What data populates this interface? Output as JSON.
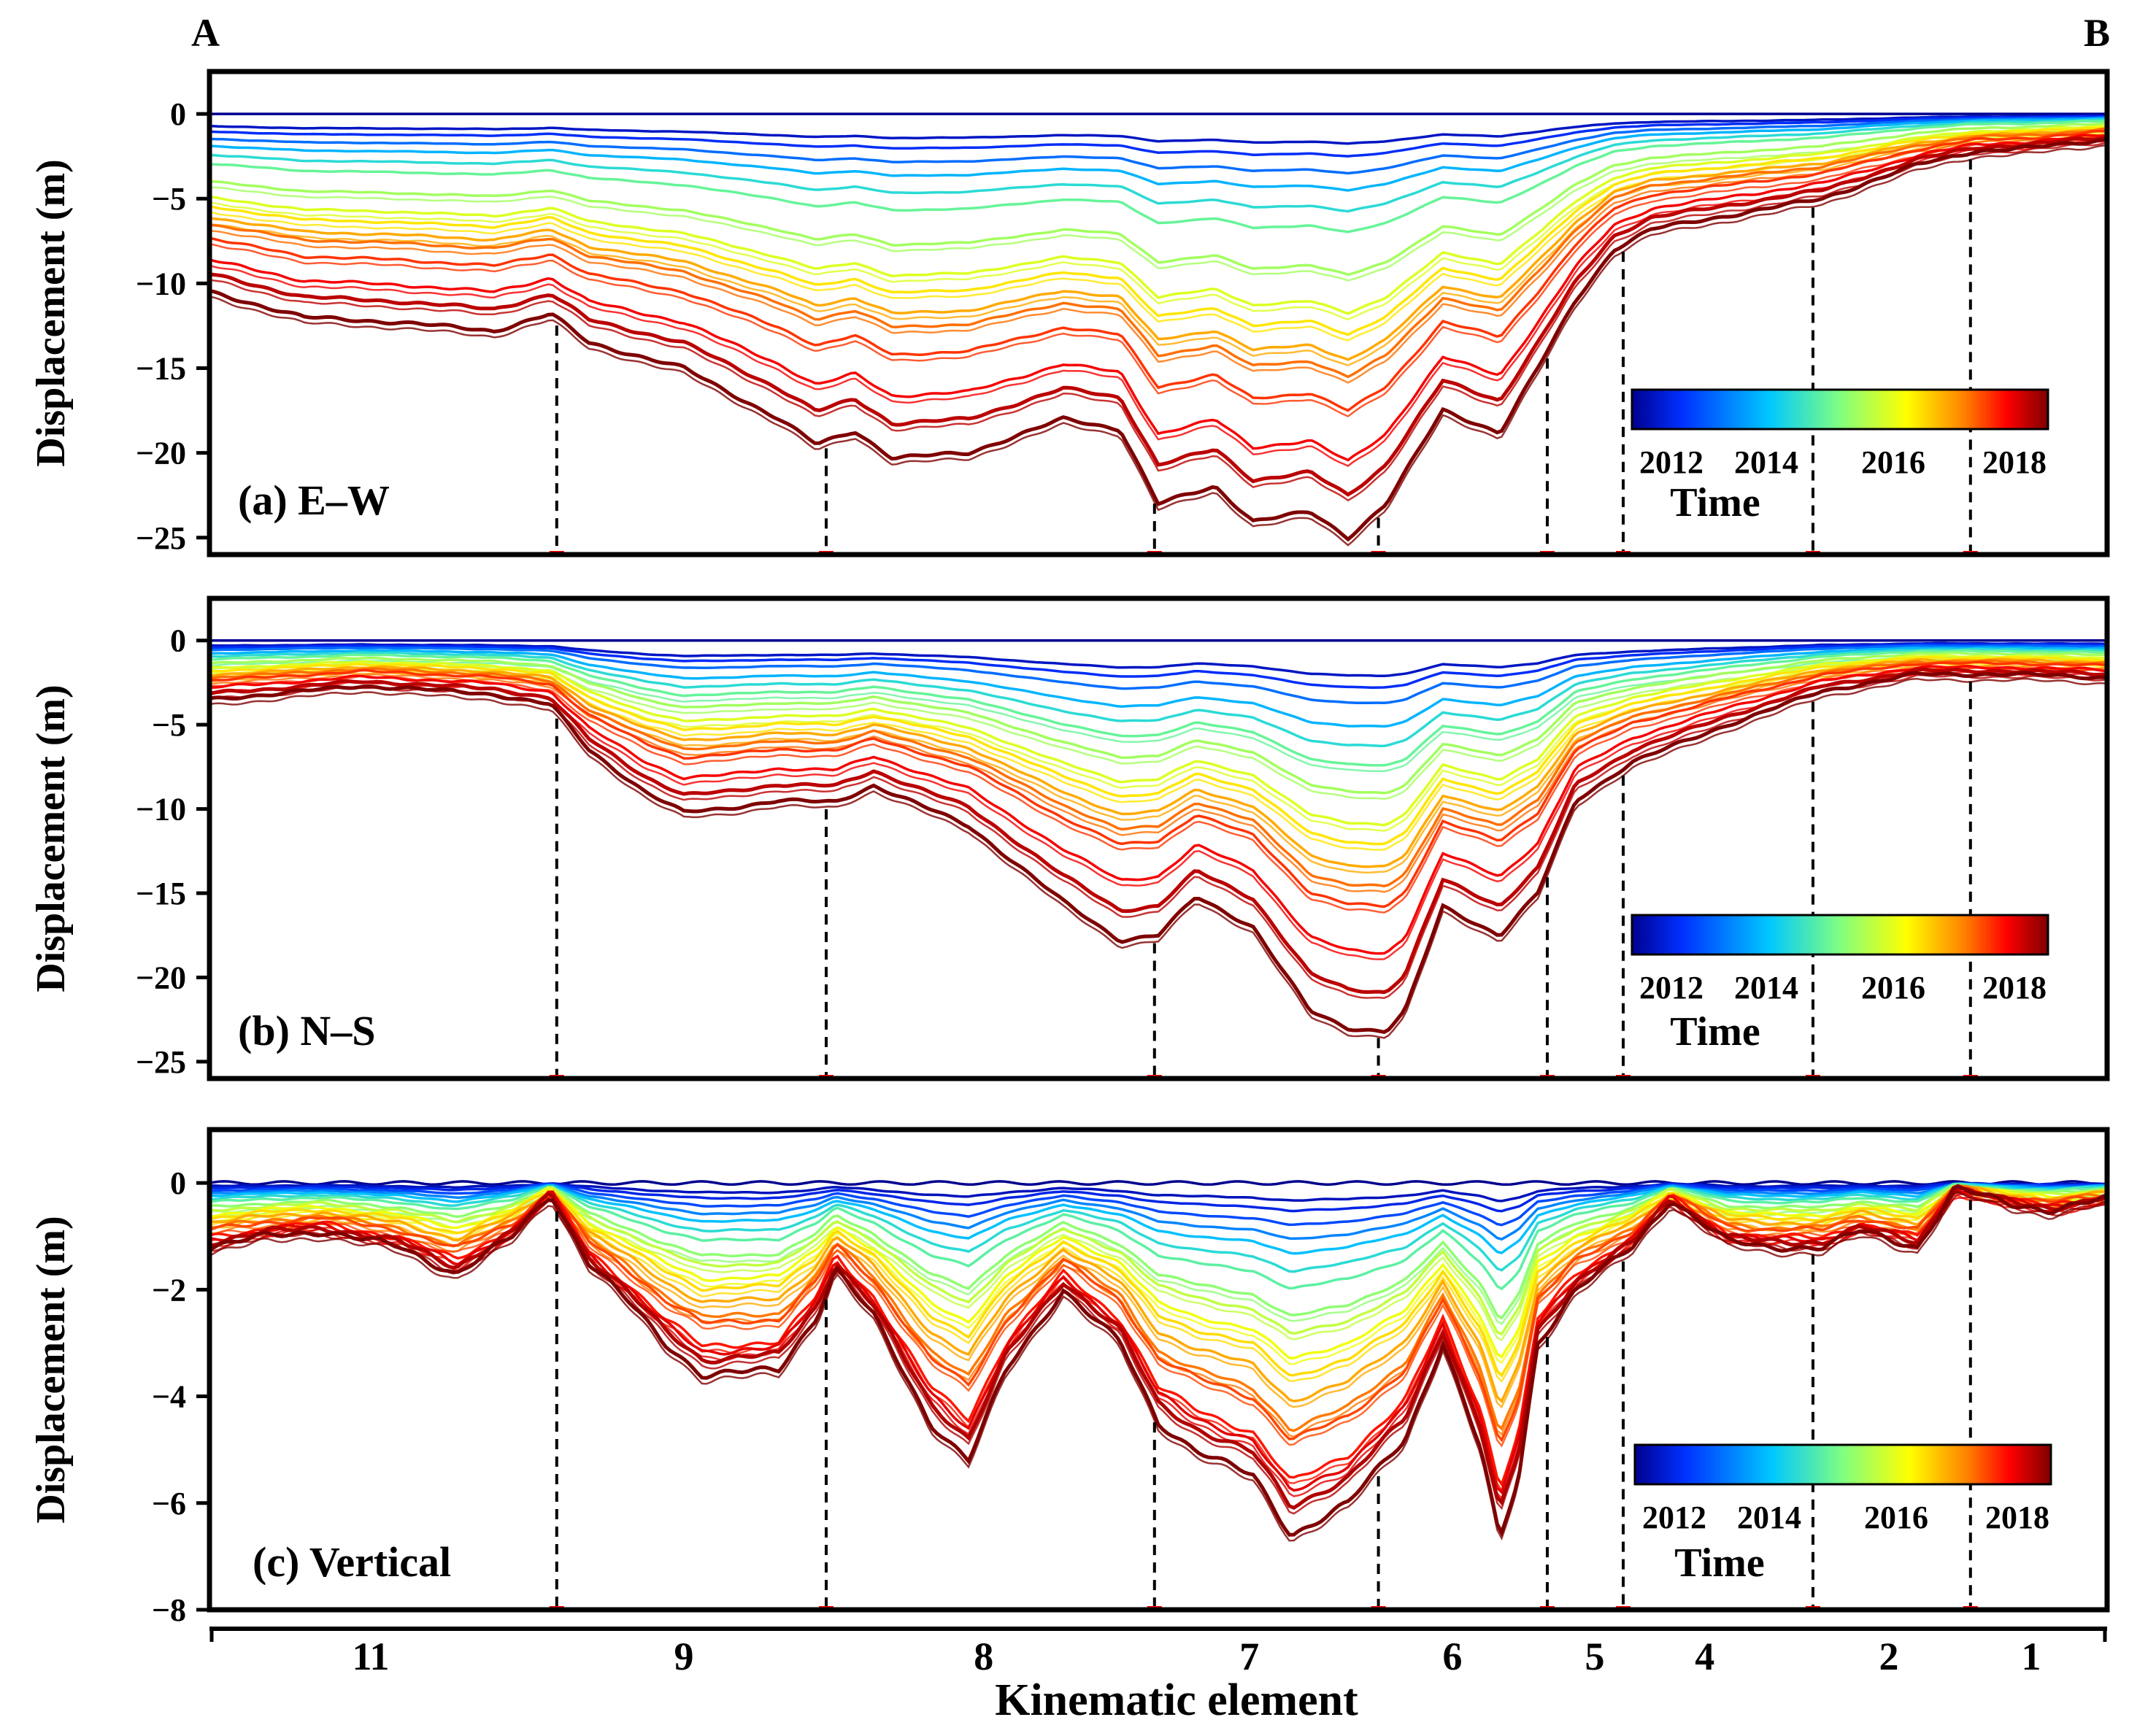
{
  "corner_labels": {
    "left": "A",
    "right": "B"
  },
  "colorbar": {
    "ticks": [
      "2012",
      "2014",
      "2016",
      "2018"
    ],
    "title": "Time",
    "colors": [
      "#00008f",
      "#0030ff",
      "#00c8ff",
      "#80ff80",
      "#ffff00",
      "#ff8000",
      "#ff0000",
      "#7f0000"
    ]
  },
  "chart_data": [
    {
      "type": "line",
      "panel": "(a) E–W",
      "ylabel": "Displacement (m)",
      "ylim": [
        -26,
        2.5
      ],
      "yticks": [
        0,
        -5,
        -10,
        -15,
        -20,
        -25
      ],
      "ytick_labels": [
        "0",
        "−5",
        "−10",
        "−15",
        "−20",
        "−25"
      ],
      "x": [
        0,
        0.05,
        0.1,
        0.15,
        0.18,
        0.2,
        0.25,
        0.3,
        0.32,
        0.34,
        0.36,
        0.4,
        0.45,
        0.48,
        0.5,
        0.53,
        0.55,
        0.58,
        0.6,
        0.62,
        0.65,
        0.68,
        0.7,
        0.72,
        0.74,
        0.76,
        0.78,
        0.8,
        0.85,
        0.9,
        0.93,
        0.96,
        1.0
      ],
      "final_profile": [
        -10.5,
        -12.0,
        -12.3,
        -12.8,
        -11.8,
        -13.5,
        -15.0,
        -18.0,
        -19.5,
        -18.7,
        -20.3,
        -20.0,
        -18.0,
        -18.6,
        -23.0,
        -22.0,
        -24.0,
        -23.5,
        -25.0,
        -23.0,
        -17.5,
        -18.8,
        -15.0,
        -11.0,
        -8.0,
        -6.8,
        -6.4,
        -6.0,
        -5.0,
        -3.0,
        -2.2,
        -2.0,
        -1.5
      ],
      "series_fractions": [
        0,
        0.07,
        0.1,
        0.14,
        0.18,
        0.23,
        0.28,
        0.38,
        0.47,
        0.52,
        0.58,
        0.62,
        0.7,
        0.82,
        0.9,
        1.0
      ],
      "dashed_boundaries": [
        0.183,
        0.325,
        0.498,
        0.616,
        0.705,
        0.745,
        0.845,
        0.928
      ]
    },
    {
      "type": "line",
      "panel": "(b) N–S",
      "ylabel": "Displacement (m)",
      "ylim": [
        -26,
        2.5
      ],
      "yticks": [
        0,
        -5,
        -10,
        -15,
        -20,
        -25
      ],
      "ytick_labels": [
        "0",
        "−5",
        "−10",
        "−15",
        "−20",
        "−25"
      ],
      "x": [
        0,
        0.05,
        0.08,
        0.1,
        0.15,
        0.18,
        0.2,
        0.23,
        0.25,
        0.27,
        0.3,
        0.33,
        0.35,
        0.4,
        0.45,
        0.48,
        0.5,
        0.52,
        0.55,
        0.58,
        0.6,
        0.62,
        0.63,
        0.65,
        0.68,
        0.7,
        0.72,
        0.75,
        0.8,
        0.85,
        0.9,
        0.95,
        1.0
      ],
      "final_profile": [
        -3.5,
        -3.0,
        -2.7,
        -2.8,
        -3.2,
        -3.8,
        -6.5,
        -9.0,
        -10.2,
        -10.0,
        -9.5,
        -9.6,
        -8.6,
        -11.0,
        -15.5,
        -17.8,
        -17.5,
        -15.2,
        -17.0,
        -22.0,
        -23.0,
        -23.2,
        -22.0,
        -15.8,
        -17.5,
        -15.0,
        -9.5,
        -7.2,
        -5.0,
        -3.0,
        -2.0,
        -2.0,
        -2.2
      ],
      "series_fractions": [
        0,
        0.09,
        0.12,
        0.16,
        0.22,
        0.27,
        0.32,
        0.39,
        0.47,
        0.52,
        0.58,
        0.63,
        0.68,
        0.8,
        0.9,
        1.0
      ],
      "dashed_boundaries": [
        0.183,
        0.325,
        0.498,
        0.616,
        0.705,
        0.745,
        0.845,
        0.928
      ]
    },
    {
      "type": "line",
      "panel": "(c) Vertical",
      "ylabel": "Displacement (m)",
      "ylim": [
        -8,
        1
      ],
      "yticks": [
        0,
        -2,
        -4,
        -6,
        -8
      ],
      "ytick_labels": [
        "0",
        "−2",
        "−4",
        "−6",
        "−8"
      ],
      "x": [
        0,
        0.03,
        0.06,
        0.1,
        0.13,
        0.16,
        0.18,
        0.2,
        0.22,
        0.24,
        0.26,
        0.3,
        0.32,
        0.33,
        0.35,
        0.38,
        0.4,
        0.42,
        0.45,
        0.48,
        0.5,
        0.52,
        0.55,
        0.57,
        0.6,
        0.63,
        0.65,
        0.67,
        0.68,
        0.69,
        0.7,
        0.72,
        0.75,
        0.77,
        0.8,
        0.82,
        0.85,
        0.87,
        0.9,
        0.92,
        0.95,
        0.97,
        1.0
      ],
      "final_profile": [
        -1.2,
        -1.0,
        -0.9,
        -1.2,
        -1.7,
        -1.0,
        -0.2,
        -1.5,
        -2.2,
        -3.0,
        -3.6,
        -3.5,
        -2.5,
        -1.6,
        -2.5,
        -4.5,
        -5.2,
        -3.5,
        -2.0,
        -3.0,
        -4.5,
        -5.0,
        -5.5,
        -6.6,
        -6.0,
        -4.8,
        -3.0,
        -5.0,
        -6.7,
        -5.5,
        -3.0,
        -2.0,
        -1.2,
        -0.3,
        -1.1,
        -1.2,
        -1.2,
        -0.9,
        -1.2,
        -0.1,
        -0.4,
        -0.5,
        -0.3
      ],
      "series_fractions": [
        0,
        0.05,
        0.08,
        0.12,
        0.16,
        0.2,
        0.25,
        0.3,
        0.38,
        0.43,
        0.5,
        0.55,
        0.62,
        0.7,
        0.73,
        0.85,
        0.88,
        0.92,
        1.0
      ],
      "dashed_boundaries": [
        0.183,
        0.325,
        0.498,
        0.616,
        0.705,
        0.745,
        0.845,
        0.928
      ]
    }
  ],
  "x_axis": {
    "label": "Kinematic element",
    "element_labels": [
      "11",
      "9",
      "8",
      "7",
      "6",
      "5",
      "4",
      "2",
      "1"
    ],
    "element_positions": [
      0.085,
      0.25,
      0.408,
      0.548,
      0.655,
      0.73,
      0.788,
      0.885,
      0.96
    ]
  }
}
